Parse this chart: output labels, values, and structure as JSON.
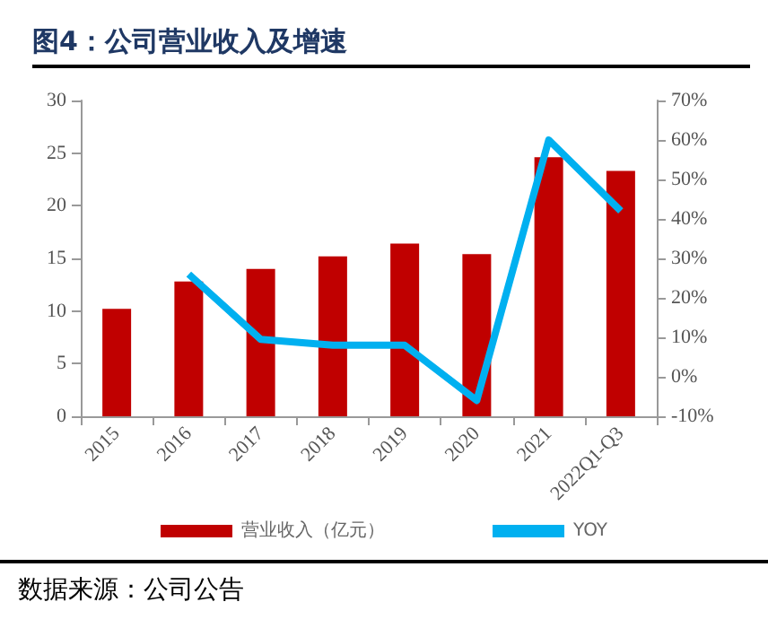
{
  "chart_data": {
    "type": "bar",
    "title": "图4：公司营业收入及增速",
    "categories": [
      "2015",
      "2016",
      "2017",
      "2018",
      "2019",
      "2020",
      "2021",
      "2022Q1-Q3"
    ],
    "series": [
      {
        "name": "营业收入（亿元）",
        "color": "#c00000",
        "values": [
          10.2,
          12.8,
          14.0,
          15.2,
          16.4,
          15.4,
          24.6,
          23.3
        ]
      },
      {
        "name": "YOY",
        "type": "line",
        "axis": "y2",
        "color": "#00b0f0",
        "values": [
          null,
          26,
          9.5,
          8,
          8,
          -6,
          60,
          42
        ]
      }
    ],
    "ylim": [
      0,
      30
    ],
    "yticks": [
      0,
      5,
      10,
      15,
      20,
      25,
      30
    ],
    "y2lim": [
      -10,
      70
    ],
    "y2ticks": [
      {
        "value": -10,
        "label": "-10%"
      },
      {
        "value": 0,
        "label": "0%"
      },
      {
        "value": 10,
        "label": "10%"
      },
      {
        "value": 20,
        "label": "20%"
      },
      {
        "value": 30,
        "label": "30%"
      },
      {
        "value": 40,
        "label": "40%"
      },
      {
        "value": 50,
        "label": "50%"
      },
      {
        "value": 60,
        "label": "60%"
      },
      {
        "value": 70,
        "label": "70%"
      }
    ],
    "grid": false,
    "legend": "bottom",
    "marker": "none",
    "annotations": [
      "数据来源：公司公告"
    ]
  }
}
